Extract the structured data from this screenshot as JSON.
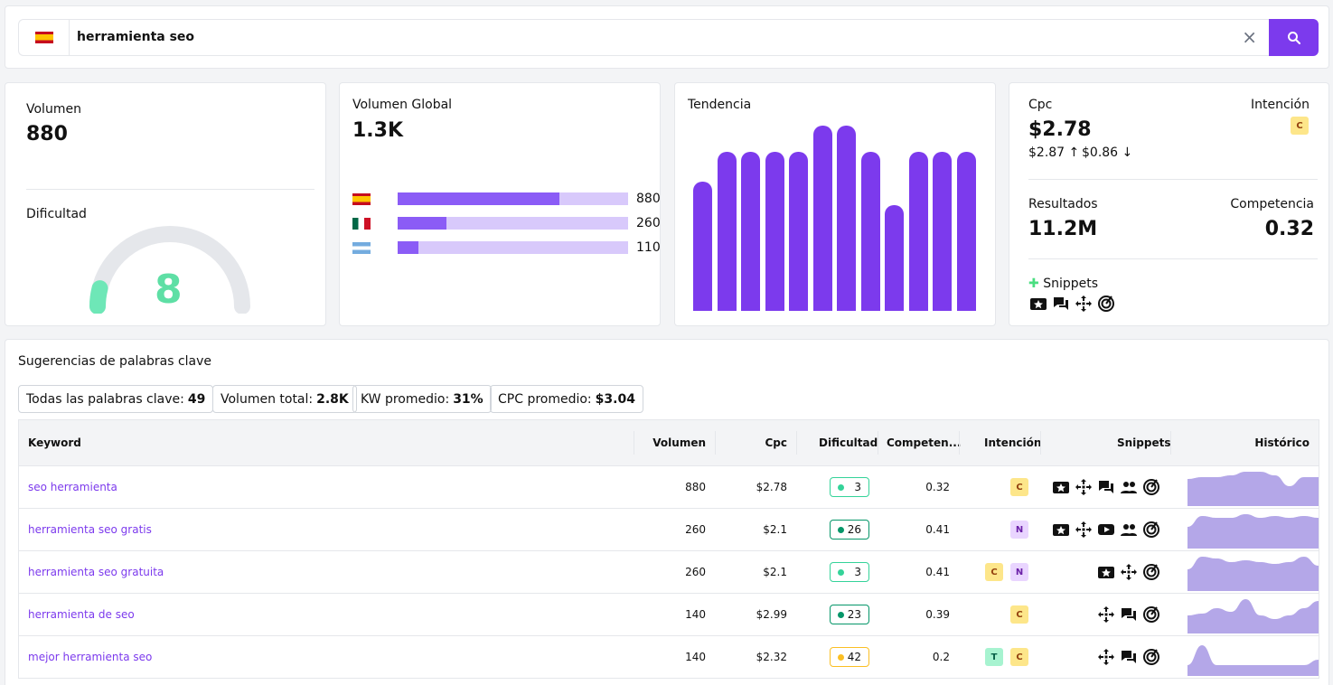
{
  "search": {
    "query": "herramienta seo",
    "clear_symbol": "×"
  },
  "overview": {
    "volume_label": "Volumen",
    "volume_value": "880",
    "difficulty_label": "Dificultad",
    "difficulty_value": "8",
    "difficulty_percent": 8,
    "global_label": "Volumen Global",
    "global_value": "1.3K",
    "global_countries": [
      {
        "flag": "es",
        "value": "880",
        "fraction": 0.7
      },
      {
        "flag": "mx",
        "value": "260",
        "fraction": 0.21
      },
      {
        "flag": "ar",
        "value": "110",
        "fraction": 0.09
      }
    ],
    "trend_label": "Tendencia",
    "trend_values": [
      0.7,
      0.86,
      0.86,
      0.86,
      0.86,
      1.0,
      1.0,
      0.86,
      0.57,
      0.86,
      0.86,
      0.86
    ],
    "cpc_label": "Cpc",
    "cpc_value": "$2.78",
    "cpc_high": "$2.87",
    "cpc_low": "$0.86",
    "intent_label": "Intención",
    "intent_badge": "C",
    "results_label": "Resultados",
    "results_value": "11.2M",
    "competition_label": "Competencia",
    "competition_value": "0.32",
    "snippets_label": "Snippets",
    "snippet_icons": [
      "reviews-icon",
      "chat-icon",
      "sitelinks-icon",
      "radar-icon"
    ]
  },
  "suggestions": {
    "title": "Sugerencias de palabras clave",
    "stats": [
      {
        "label": "Todas las palabras clave:",
        "value": "49"
      },
      {
        "label": "Volumen total:",
        "value": "2.8K"
      },
      {
        "label": "KW promedio:",
        "value": "31%"
      },
      {
        "label": "CPC promedio:",
        "value": "$3.04"
      }
    ],
    "columns": {
      "keyword": "Keyword",
      "volume": "Volumen",
      "cpc": "Cpc",
      "difficulty": "Dificultad",
      "competition": "Competen...",
      "intent": "Intención",
      "snippets": "Snippets",
      "history": "Histórico"
    },
    "rows": [
      {
        "keyword": "seo herramienta",
        "volume": "880",
        "cpc": "$2.78",
        "difficulty": "3",
        "diff_color": "#34d399",
        "competition": "0.32",
        "intent": [
          "C"
        ],
        "snippets": [
          "reviews-icon",
          "sitelinks-icon",
          "chat-icon",
          "people-icon",
          "radar-icon"
        ],
        "history": [
          0.75,
          0.8,
          0.8,
          0.85,
          0.95,
          0.95,
          0.85,
          0.55,
          0.8,
          0.8
        ]
      },
      {
        "keyword": "herramienta seo gratis",
        "volume": "260",
        "cpc": "$2.1",
        "difficulty": "26",
        "diff_color": "#059669",
        "competition": "0.41",
        "intent": [
          "N"
        ],
        "snippets": [
          "reviews-icon",
          "sitelinks-icon",
          "video-icon",
          "people-icon",
          "radar-icon"
        ],
        "history": [
          0.6,
          0.9,
          0.85,
          0.85,
          0.95,
          0.85,
          0.9,
          0.85,
          0.9,
          0.85
        ]
      },
      {
        "keyword": "herramienta seo gratuita",
        "volume": "260",
        "cpc": "$2.1",
        "difficulty": "3",
        "diff_color": "#34d399",
        "competition": "0.41",
        "intent": [
          "C",
          "N"
        ],
        "snippets": [
          "reviews-icon",
          "sitelinks-icon",
          "radar-icon"
        ],
        "history": [
          0.6,
          0.95,
          0.9,
          0.8,
          0.85,
          0.8,
          0.75,
          0.8,
          0.95,
          0.7
        ]
      },
      {
        "keyword": "herramienta de seo",
        "volume": "140",
        "cpc": "$2.99",
        "difficulty": "23",
        "diff_color": "#059669",
        "competition": "0.39",
        "intent": [
          "C"
        ],
        "snippets": [
          "sitelinks-icon",
          "chat-icon",
          "radar-icon"
        ],
        "history": [
          0.5,
          0.55,
          0.7,
          0.6,
          0.95,
          0.5,
          0.4,
          0.5,
          0.7,
          0.9
        ]
      },
      {
        "keyword": "mejor herramienta seo",
        "volume": "140",
        "cpc": "$2.32",
        "difficulty": "42",
        "diff_color": "#fbbf24",
        "competition": "0.2",
        "intent": [
          "T",
          "C"
        ],
        "snippets": [
          "sitelinks-icon",
          "chat-icon",
          "radar-icon"
        ],
        "history": [
          0.3,
          0.85,
          0.3,
          0.3,
          0.3,
          0.3,
          0.3,
          0.3,
          0.3,
          0.45
        ]
      }
    ]
  }
}
